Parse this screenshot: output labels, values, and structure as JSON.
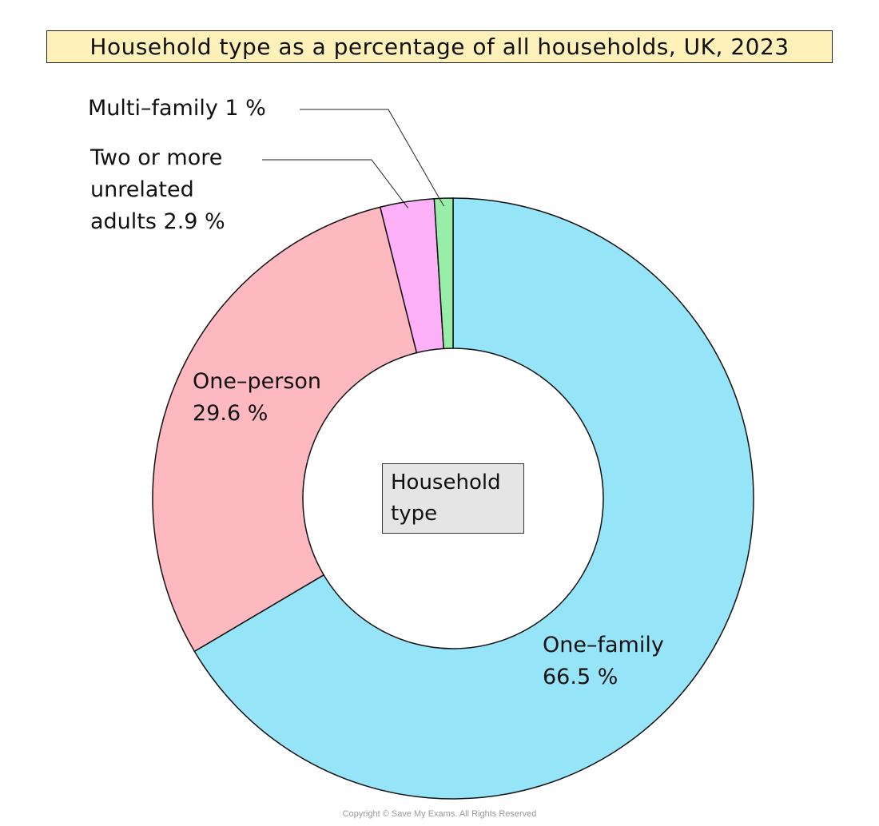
{
  "chart_data": {
    "type": "pie",
    "title": "Household type as a percentage of all households, UK, 2023",
    "center_label": "Household type",
    "slices": [
      {
        "name": "One-family",
        "value": 66.5,
        "color": "#96e4f8",
        "label_lines": [
          "One–family",
          "66.5 %"
        ]
      },
      {
        "name": "One-person",
        "value": 29.6,
        "color": "#fdb8c0",
        "label_lines": [
          "One–person",
          "29.6 %"
        ]
      },
      {
        "name": "Two or more unrelated adults",
        "value": 2.9,
        "color": "#fbb0f8",
        "label_lines": [
          "Two or more",
          "unrelated",
          "adults 2.9 %"
        ]
      },
      {
        "name": "Multi-family",
        "value": 1,
        "color": "#98eea8",
        "label_lines": [
          "Multi–family 1 %"
        ]
      }
    ]
  },
  "copyright": "Copyright © Save My Exams. All Rights Reserved"
}
